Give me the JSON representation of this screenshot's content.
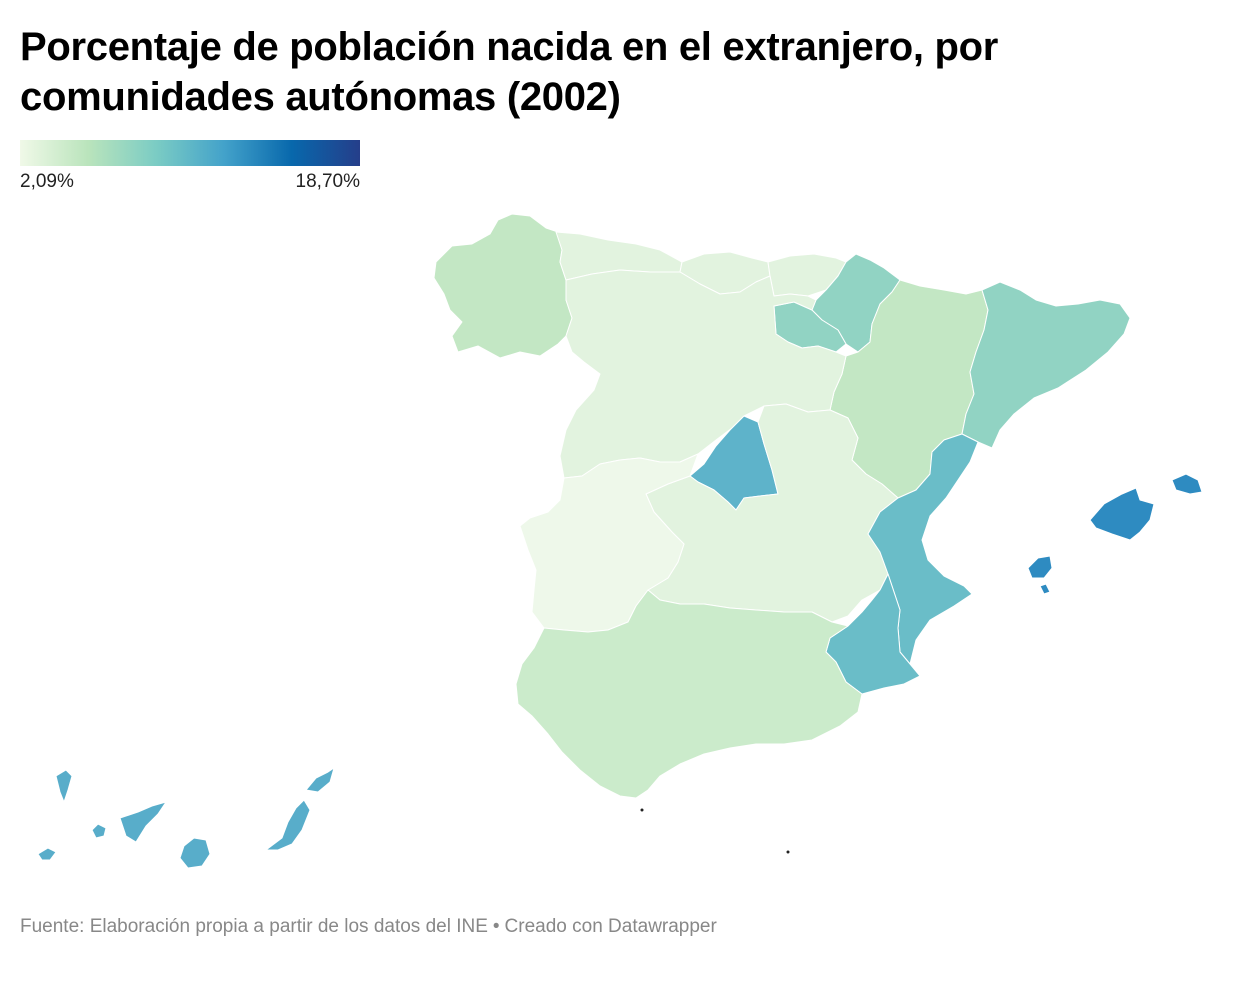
{
  "title": "Porcentaje de población nacida en el extranjero, por comunidades autónomas (2002)",
  "legend": {
    "min_label": "2,09%",
    "max_label": "18,70%",
    "gradient": [
      "#f0f9e8",
      "#bae4bc",
      "#7bccc4",
      "#43a2ca",
      "#0868ac",
      "#253e8a"
    ]
  },
  "colors": {
    "galicia": "#c3e7c4",
    "asturias": "#e2f3df",
    "cantabria": "#e2f3df",
    "pais_vasco": "#e2f3df",
    "navarra": "#91d3c3",
    "la_rioja": "#91d3c3",
    "aragon": "#c3e7c4",
    "cataluna": "#91d3c3",
    "castilla_y_leon": "#e2f3df",
    "madrid": "#5eb3ca",
    "castilla_la_mancha": "#e2f3df",
    "extremadura": "#eef8ea",
    "comunidad_valenciana": "#6abdc8",
    "murcia": "#6abdc8",
    "andalucia": "#cbebcb",
    "baleares": "#2e8bc1",
    "canarias": "#58adca",
    "ceuta_melilla": "#222222"
  },
  "footer": {
    "source": "Fuente: Elaboración propia a partir de los datos del INE",
    "separator": "•",
    "credit": "Creado con Datawrapper"
  }
}
